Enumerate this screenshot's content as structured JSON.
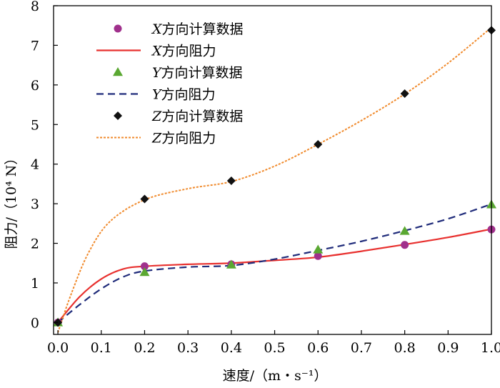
{
  "chart_data": {
    "type": "line",
    "x": [
      0.0,
      0.2,
      0.4,
      0.6,
      0.8,
      1.0
    ],
    "xlim": [
      -0.01,
      1.0
    ],
    "ylim": [
      -0.3,
      8
    ],
    "xticks": [
      0.0,
      0.1,
      0.2,
      0.3,
      0.4,
      0.5,
      0.6,
      0.7,
      0.8,
      0.9,
      1.0
    ],
    "xtick_labels": [
      "0.0",
      "0.1",
      "0.2",
      "0.3",
      "0.4",
      "0.5",
      "0.6",
      "0.7",
      "0.8",
      "0.9",
      "1.0"
    ],
    "yticks": [
      0,
      1,
      2,
      3,
      4,
      5,
      6,
      7,
      8
    ],
    "ytick_labels": [
      "0",
      "1",
      "2",
      "3",
      "4",
      "5",
      "6",
      "7",
      "8"
    ],
    "xlabel": "速度/（m・s⁻¹）",
    "ylabel": "阻力/（10⁴ N）",
    "legend_position": "top-left",
    "series": [
      {
        "key": "x_calc",
        "name": "X方向计算数据",
        "kind": "markers",
        "marker": "circle",
        "color": "#a0308c",
        "values": [
          0.0,
          1.42,
          1.47,
          1.68,
          1.96,
          2.35
        ]
      },
      {
        "key": "x_fit",
        "name": "X方向阻力",
        "kind": "curve",
        "style": "solid",
        "color": "#e8302e",
        "values": [
          0.0,
          1.42,
          1.5,
          1.65,
          1.97,
          2.36
        ]
      },
      {
        "key": "y_calc",
        "name": "Y方向计算数据",
        "kind": "markers",
        "marker": "triangle",
        "color": "#5aa832",
        "values": [
          0.0,
          1.27,
          1.46,
          1.84,
          2.31,
          2.98
        ]
      },
      {
        "key": "y_fit",
        "name": "Y方向阻力",
        "kind": "curve",
        "style": "dashed",
        "color": "#1f2b7a",
        "values": [
          0.0,
          1.3,
          1.44,
          1.82,
          2.32,
          2.99
        ]
      },
      {
        "key": "z_calc",
        "name": "Z方向计算数据",
        "kind": "markers",
        "marker": "diamond",
        "color": "#111111",
        "values": [
          0.0,
          3.12,
          3.58,
          4.5,
          5.78,
          7.38
        ]
      },
      {
        "key": "z_fit",
        "name": "Z方向阻力",
        "kind": "curve",
        "style": "dotted",
        "color": "#f08a2c",
        "values": [
          -0.25,
          3.1,
          3.56,
          4.5,
          5.77,
          7.45
        ]
      }
    ],
    "x_fine_curves": {
      "x_fit": [
        [
          0.0,
          0.0
        ],
        [
          0.05,
          0.65
        ],
        [
          0.1,
          1.1
        ],
        [
          0.15,
          1.35
        ],
        [
          0.2,
          1.42
        ],
        [
          0.3,
          1.47
        ],
        [
          0.4,
          1.5
        ],
        [
          0.5,
          1.57
        ],
        [
          0.6,
          1.65
        ],
        [
          0.7,
          1.8
        ],
        [
          0.8,
          1.97
        ],
        [
          0.9,
          2.15
        ],
        [
          1.0,
          2.36
        ]
      ],
      "y_fit": [
        [
          0.0,
          0.0
        ],
        [
          0.05,
          0.45
        ],
        [
          0.1,
          0.85
        ],
        [
          0.15,
          1.15
        ],
        [
          0.2,
          1.3
        ],
        [
          0.3,
          1.4
        ],
        [
          0.4,
          1.44
        ],
        [
          0.5,
          1.6
        ],
        [
          0.6,
          1.82
        ],
        [
          0.7,
          2.05
        ],
        [
          0.8,
          2.32
        ],
        [
          0.9,
          2.62
        ],
        [
          1.0,
          2.99
        ]
      ],
      "z_fit": [
        [
          0.0,
          -0.25
        ],
        [
          0.03,
          0.7
        ],
        [
          0.07,
          1.75
        ],
        [
          0.12,
          2.55
        ],
        [
          0.2,
          3.1
        ],
        [
          0.3,
          3.38
        ],
        [
          0.4,
          3.56
        ],
        [
          0.5,
          3.95
        ],
        [
          0.6,
          4.5
        ],
        [
          0.7,
          5.1
        ],
        [
          0.8,
          5.77
        ],
        [
          0.9,
          6.55
        ],
        [
          1.0,
          7.45
        ]
      ]
    }
  }
}
